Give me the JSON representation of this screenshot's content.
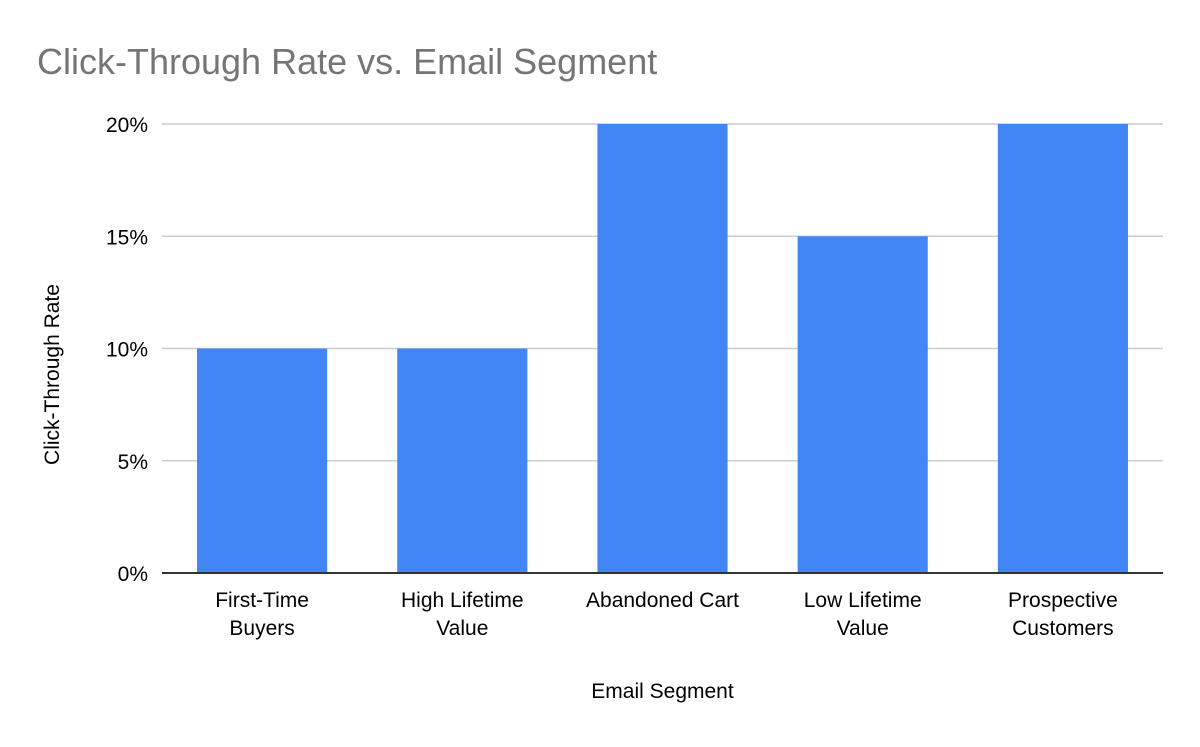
{
  "chart_data": {
    "type": "bar",
    "title": "Click-Through Rate vs. Email Segment",
    "xlabel": "Email Segment",
    "ylabel": "Click-Through Rate",
    "categories": [
      [
        "First-Time",
        "Buyers"
      ],
      [
        "High Lifetime",
        "Value"
      ],
      [
        "Abandoned Cart"
      ],
      [
        "Low Lifetime",
        "Value"
      ],
      [
        "Prospective",
        "Customers"
      ]
    ],
    "values": [
      10,
      10,
      20,
      15,
      20
    ],
    "ylim": [
      0,
      20
    ],
    "yticks": [
      "0%",
      "5%",
      "10%",
      "15%",
      "20%"
    ],
    "ytick_values": [
      0,
      5,
      10,
      15,
      20
    ],
    "grid": true,
    "legend": "none",
    "colors": {
      "bar": "#4285f4",
      "title": "#757575",
      "text": "#000000",
      "grid": "#cccccc",
      "axis": "#333333"
    }
  }
}
